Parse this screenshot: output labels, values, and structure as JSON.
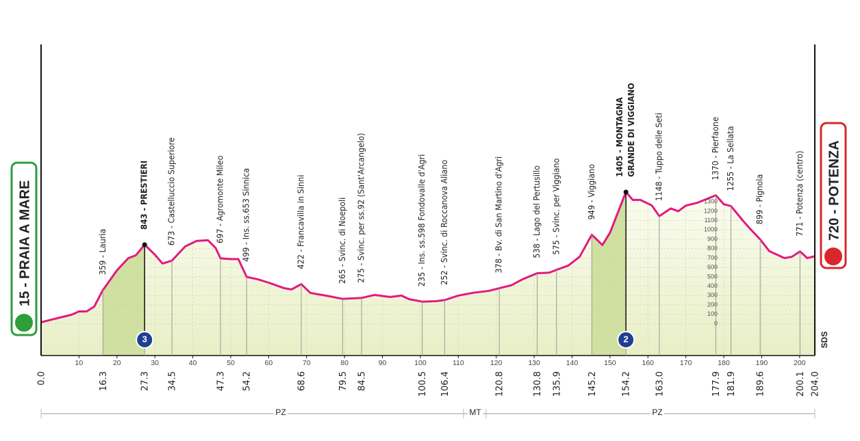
{
  "chart_data": {
    "type": "area",
    "start": {
      "km": {
        "value": 0,
        "label": "0.0"
      },
      "name": "15 - PRAIA A MARE"
    },
    "finish": {
      "km": {
        "value": 204,
        "label": "204.0"
      },
      "name": "720 - POTENZA"
    },
    "x": [
      0,
      5,
      8,
      10,
      12,
      14,
      16.3,
      20,
      23,
      25,
      27.3,
      30,
      32,
      34.5,
      38,
      41,
      44,
      46,
      47.3,
      50,
      52,
      54.2,
      57,
      60,
      64,
      66,
      68.6,
      71,
      75,
      79.5,
      82,
      84.5,
      88,
      92,
      95,
      97,
      100.5,
      104,
      106.4,
      110,
      114,
      118,
      120.8,
      124,
      127,
      130.8,
      134,
      135.9,
      139,
      142,
      145.2,
      148,
      150,
      154.2,
      156,
      158,
      161,
      163,
      166,
      168,
      170,
      173,
      177.9,
      180,
      181.9,
      185,
      187,
      189.6,
      192,
      194,
      196,
      198,
      200.1,
      202,
      204
    ],
    "series": [
      {
        "color": "#e3197f",
        "values": [
          15,
          66,
          95,
          131,
          131,
          182,
          359,
          569,
          700,
          730,
          843,
          737,
          642,
          673,
          825,
          883,
          890,
          810,
          697,
          690,
          690,
          499,
          475,
          438,
          380,
          365,
          422,
          328,
          300,
          265,
          270,
          275,
          307,
          285,
          300,
          262,
          235,
          240,
          252,
          300,
          330,
          350,
          378,
          410,
          475,
          538,
          545,
          575,
          620,
          715,
          949,
          840,
          971,
          1405,
          1321,
          1321,
          1263,
          1148,
          1230,
          1200,
          1260,
          1290,
          1370,
          1275,
          1255,
          1102,
          1010,
          899,
          774,
          737,
          700,
          715,
          771,
          700,
          720
        ]
      }
    ],
    "fill_color": "#eef3d2",
    "climb_color": "#cfe0a0",
    "xlim": [
      0,
      204
    ],
    "ylim": [
      -340,
      2980
    ],
    "xticks": [
      10,
      20,
      30,
      40,
      50,
      60,
      70,
      80,
      90,
      100,
      110,
      120,
      130,
      140,
      150,
      160,
      170,
      180,
      190,
      200
    ],
    "yticks": [
      0,
      100,
      200,
      300,
      400,
      500,
      600,
      700,
      800,
      900,
      1000,
      1100,
      1200,
      1300
    ],
    "waypoints": [
      {
        "km": 16.3,
        "name": "359 - Lauria"
      },
      {
        "km": 27.3,
        "name": "843 - PRESTIERI",
        "category": 3
      },
      {
        "km": 34.5,
        "name": "673 - Castelluccio Superiore"
      },
      {
        "km": 47.3,
        "name": "697 - Agromonte Mileo"
      },
      {
        "km": 54.2,
        "name": "499 - Ins. ss.653 Sinnica"
      },
      {
        "km": 68.6,
        "name": "422 - Francavilla in Sinni"
      },
      {
        "km": 79.5,
        "name": "265 - Svinc. di Noepoli"
      },
      {
        "km": 84.5,
        "name": "275 - Svinc. per ss.92 (Sant'Arcangelo)"
      },
      {
        "km": 100.5,
        "name": "235 - Ins. ss.598 Fondovalle d'Agri"
      },
      {
        "km": 106.4,
        "name": "252 - Svinc. di Roccanova Aliano"
      },
      {
        "km": 120.8,
        "name": "378 - Bv. di San Martino d'Agri"
      },
      {
        "km": 130.8,
        "name": "538 - Lago del Pertusillo"
      },
      {
        "km": 135.9,
        "name": "575 - Svinc. per Viggiano"
      },
      {
        "km": 145.2,
        "name": "949 - Viggiano"
      },
      {
        "km": 154.2,
        "name": [
          "1405 - MONTAGNA",
          "GRANDE DI VIGGIANO"
        ],
        "category": 2
      },
      {
        "km": {
          "value": 163,
          "label": "163.0"
        },
        "name": "1148 - Tuppo delle Seti"
      },
      {
        "km": 177.9,
        "name": "1370 - Pierfaone"
      },
      {
        "km": 181.9,
        "name": "1255 - La Sellata"
      },
      {
        "km": 189.6,
        "name": "899 - Pignola"
      },
      {
        "km": 200.1,
        "name": "771 - Potenza (centro)"
      }
    ],
    "regions": [
      "PZ",
      "MT",
      "PZ"
    ],
    "sds": "SDS"
  }
}
